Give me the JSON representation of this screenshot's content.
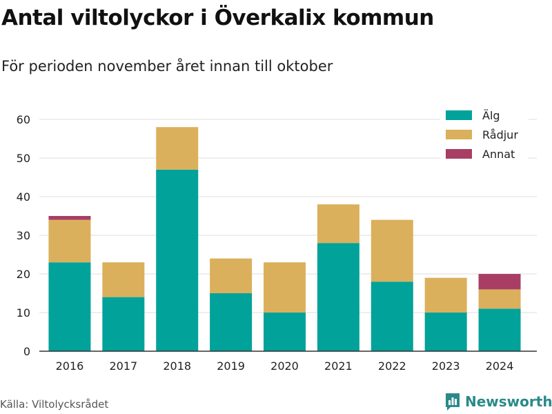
{
  "colors": {
    "alg": "#00a29a",
    "radjur": "#dbb05c",
    "annat": "#a83e64",
    "grid": "#dddddd",
    "brand": "#2a8a89"
  },
  "chart_data": {
    "type": "bar",
    "stacked": true,
    "title": "Antal viltolyckor i Överkalix kommun",
    "subtitle": "För perioden november året innan till oktober",
    "categories": [
      "2016",
      "2017",
      "2018",
      "2019",
      "2020",
      "2021",
      "2022",
      "2023",
      "2024"
    ],
    "series": [
      {
        "name": "Älg",
        "color": "#00a29a",
        "values": [
          23,
          14,
          47,
          15,
          10,
          28,
          18,
          10,
          11
        ]
      },
      {
        "name": "Rådjur",
        "color": "#dbb05c",
        "values": [
          11,
          9,
          11,
          9,
          13,
          10,
          16,
          9,
          5
        ]
      },
      {
        "name": "Annat",
        "color": "#a83e64",
        "values": [
          1,
          0,
          0,
          0,
          0,
          0,
          0,
          0,
          4
        ]
      }
    ],
    "ylim": [
      0,
      60
    ],
    "yticks": [
      0,
      10,
      20,
      30,
      40,
      50,
      60
    ],
    "grid": true,
    "legend_position": "top-right",
    "source": "Källa: Viltolycksrådet",
    "brand": "Newsworthy"
  }
}
